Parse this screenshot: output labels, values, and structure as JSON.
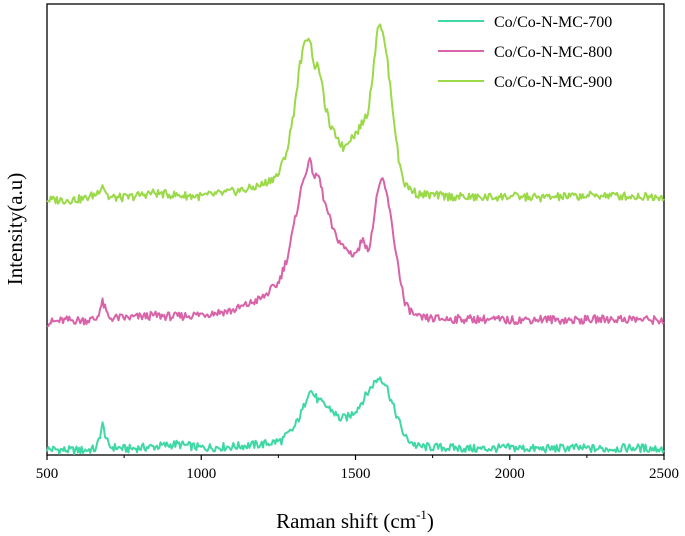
{
  "chart_data": {
    "type": "line",
    "title": "",
    "xlabel": "Raman shift (cm",
    "xlabel_sup": "-1",
    "xlabel_end": ")",
    "ylabel": "Intensity(a.u)",
    "xlim": [
      500,
      2500
    ],
    "x_ticks": [
      500,
      1000,
      1500,
      2000,
      2500
    ],
    "y_ticks_shown": false,
    "grid": false,
    "legend_position": "top-right",
    "series": [
      {
        "name": "Co/Co-N-MC-700",
        "color": "#3fd8a5",
        "offset": 0,
        "x": [
          500,
          560,
          620,
          660,
          680,
          700,
          760,
          850,
          920,
          1000,
          1100,
          1200,
          1260,
          1300,
          1330,
          1350,
          1380,
          1420,
          1450,
          1480,
          1510,
          1540,
          1560,
          1580,
          1600,
          1620,
          1660,
          1700,
          1800,
          1900,
          2000,
          2100,
          2200,
          2300,
          2400,
          2500
        ],
        "values": [
          0.05,
          0.04,
          0.04,
          0.05,
          0.25,
          0.07,
          0.05,
          0.07,
          0.09,
          0.06,
          0.07,
          0.09,
          0.12,
          0.22,
          0.38,
          0.55,
          0.45,
          0.38,
          0.3,
          0.32,
          0.4,
          0.52,
          0.6,
          0.65,
          0.58,
          0.42,
          0.15,
          0.07,
          0.06,
          0.05,
          0.06,
          0.05,
          0.06,
          0.05,
          0.06,
          0.05
        ]
      },
      {
        "name": "Co/Co-N-MC-800",
        "color": "#d863a9",
        "offset": 1.05,
        "x": [
          500,
          560,
          620,
          660,
          680,
          700,
          760,
          850,
          920,
          1000,
          1100,
          1150,
          1200,
          1250,
          1280,
          1300,
          1320,
          1340,
          1350,
          1370,
          1380,
          1400,
          1430,
          1460,
          1490,
          1510,
          1525,
          1540,
          1560,
          1575,
          1590,
          1605,
          1620,
          1640,
          1660,
          1700,
          1800,
          1900,
          2000,
          2100,
          2200,
          2300,
          2400,
          2500
        ],
        "values": [
          0.05,
          0.07,
          0.07,
          0.08,
          0.22,
          0.09,
          0.09,
          0.11,
          0.1,
          0.12,
          0.15,
          0.2,
          0.26,
          0.38,
          0.6,
          0.85,
          1.12,
          1.32,
          1.4,
          1.25,
          1.28,
          1.05,
          0.8,
          0.68,
          0.62,
          0.65,
          0.78,
          0.62,
          0.92,
          1.2,
          1.22,
          1.08,
          0.82,
          0.5,
          0.2,
          0.09,
          0.08,
          0.08,
          0.07,
          0.08,
          0.07,
          0.08,
          0.08,
          0.07
        ]
      },
      {
        "name": "Co/Co-N-MC-900",
        "color": "#9bd949",
        "offset": 2.05,
        "x": [
          500,
          560,
          620,
          660,
          680,
          700,
          760,
          840,
          920,
          1000,
          1080,
          1150,
          1200,
          1250,
          1280,
          1300,
          1320,
          1340,
          1350,
          1370,
          1380,
          1400,
          1420,
          1440,
          1460,
          1480,
          1500,
          1520,
          1540,
          1560,
          1570,
          1580,
          1600,
          1620,
          1640,
          1660,
          1700,
          1800,
          1900,
          2000,
          2100,
          2200,
          2300,
          2400,
          2500
        ],
        "values": [
          0.07,
          0.07,
          0.08,
          0.12,
          0.2,
          0.09,
          0.09,
          0.13,
          0.11,
          0.1,
          0.13,
          0.16,
          0.2,
          0.28,
          0.5,
          0.8,
          1.2,
          1.42,
          1.43,
          1.15,
          1.2,
          0.88,
          0.66,
          0.6,
          0.5,
          0.58,
          0.62,
          0.7,
          0.8,
          1.2,
          1.5,
          1.55,
          1.3,
          0.85,
          0.4,
          0.2,
          0.12,
          0.1,
          0.09,
          0.1,
          0.09,
          0.1,
          0.11,
          0.1,
          0.1
        ]
      }
    ]
  }
}
